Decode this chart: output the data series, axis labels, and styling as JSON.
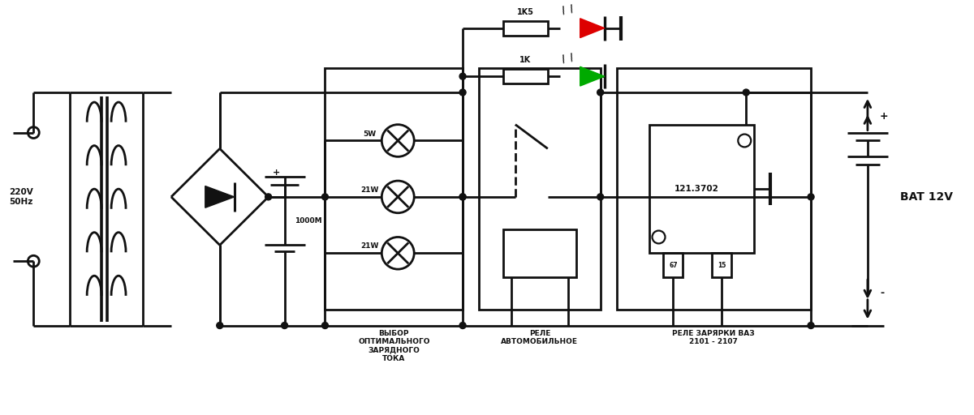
{
  "bg": "#ffffff",
  "lc": "#111111",
  "lw": 2.0,
  "red": "#dd0000",
  "green": "#00aa00",
  "labels": {
    "voltage": "220V\n50Hz",
    "cap_val": "1000M",
    "plus": "+",
    "r1": "1K5",
    "r2": "1K",
    "l1": "5W",
    "l2": "21W",
    "l3": "21W",
    "box1_lbl": "ВЫБОР\nОПТИМАЛЬНОГО\nЗАРЯДНОГО\nТОКА",
    "box2_lbl": "РЕЛЕ\nАВТОМОБИЛЬНОЕ",
    "box3_lbl": "РЕЛЕ ЗАРЯРКИ ВАЗ\n2101 - 2107",
    "relay_ic": "121.3702",
    "p67": "67",
    "p15": "15",
    "bat": "BAT 12V",
    "bat_plus": "+",
    "bat_minus": "-"
  },
  "xscale": 120,
  "yscale": 51.2
}
